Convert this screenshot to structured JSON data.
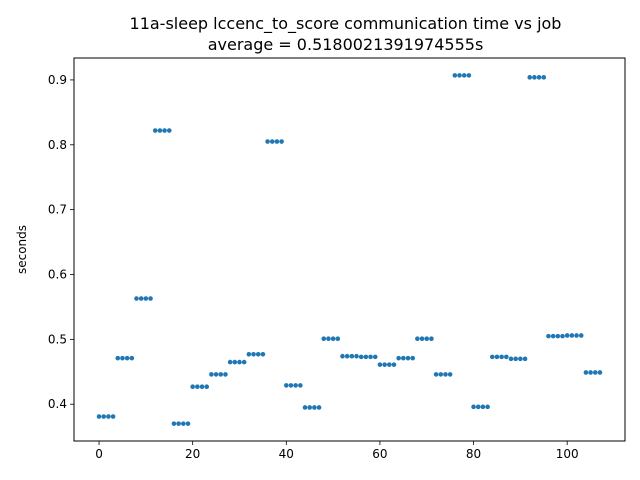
{
  "chart_data": {
    "type": "scatter",
    "title": "11a-sleep lccenc_to_score communication time vs job",
    "subtitle": "average = 0.5180021391974555s",
    "xlabel": "",
    "ylabel": "seconds",
    "xlim": [
      -5.35,
      112.35
    ],
    "ylim": [
      0.3433,
      0.9338
    ],
    "xticks": [
      0,
      20,
      40,
      60,
      80,
      100
    ],
    "yticks": [
      0.4,
      0.5,
      0.6,
      0.7,
      0.8,
      0.9
    ],
    "xtick_labels": [
      "0",
      "20",
      "40",
      "60",
      "80",
      "100"
    ],
    "ytick_labels": [
      "0.4",
      "0.5",
      "0.6",
      "0.7",
      "0.8",
      "0.9"
    ],
    "grid": false,
    "marker_color": "#1f77b4",
    "groups": [
      {
        "x_start": 0,
        "count": 4,
        "y": 0.381
      },
      {
        "x_start": 4,
        "count": 4,
        "y": 0.471
      },
      {
        "x_start": 8,
        "count": 4,
        "y": 0.563
      },
      {
        "x_start": 12,
        "count": 4,
        "y": 0.822
      },
      {
        "x_start": 16,
        "count": 4,
        "y": 0.37
      },
      {
        "x_start": 20,
        "count": 4,
        "y": 0.427
      },
      {
        "x_start": 24,
        "count": 4,
        "y": 0.446
      },
      {
        "x_start": 28,
        "count": 4,
        "y": 0.465
      },
      {
        "x_start": 32,
        "count": 4,
        "y": 0.477
      },
      {
        "x_start": 36,
        "count": 4,
        "y": 0.805
      },
      {
        "x_start": 40,
        "count": 4,
        "y": 0.429
      },
      {
        "x_start": 44,
        "count": 4,
        "y": 0.395
      },
      {
        "x_start": 48,
        "count": 4,
        "y": 0.501
      },
      {
        "x_start": 52,
        "count": 4,
        "y": 0.474
      },
      {
        "x_start": 56,
        "count": 4,
        "y": 0.473
      },
      {
        "x_start": 60,
        "count": 4,
        "y": 0.461
      },
      {
        "x_start": 64,
        "count": 4,
        "y": 0.471
      },
      {
        "x_start": 68,
        "count": 4,
        "y": 0.501
      },
      {
        "x_start": 72,
        "count": 4,
        "y": 0.446
      },
      {
        "x_start": 76,
        "count": 4,
        "y": 0.907
      },
      {
        "x_start": 80,
        "count": 4,
        "y": 0.396
      },
      {
        "x_start": 84,
        "count": 4,
        "y": 0.473
      },
      {
        "x_start": 88,
        "count": 4,
        "y": 0.47
      },
      {
        "x_start": 92,
        "count": 4,
        "y": 0.904
      },
      {
        "x_start": 96,
        "count": 4,
        "y": 0.505
      },
      {
        "x_start": 100,
        "count": 4,
        "y": 0.506
      },
      {
        "x_start": 104,
        "count": 4,
        "y": 0.449
      }
    ]
  }
}
